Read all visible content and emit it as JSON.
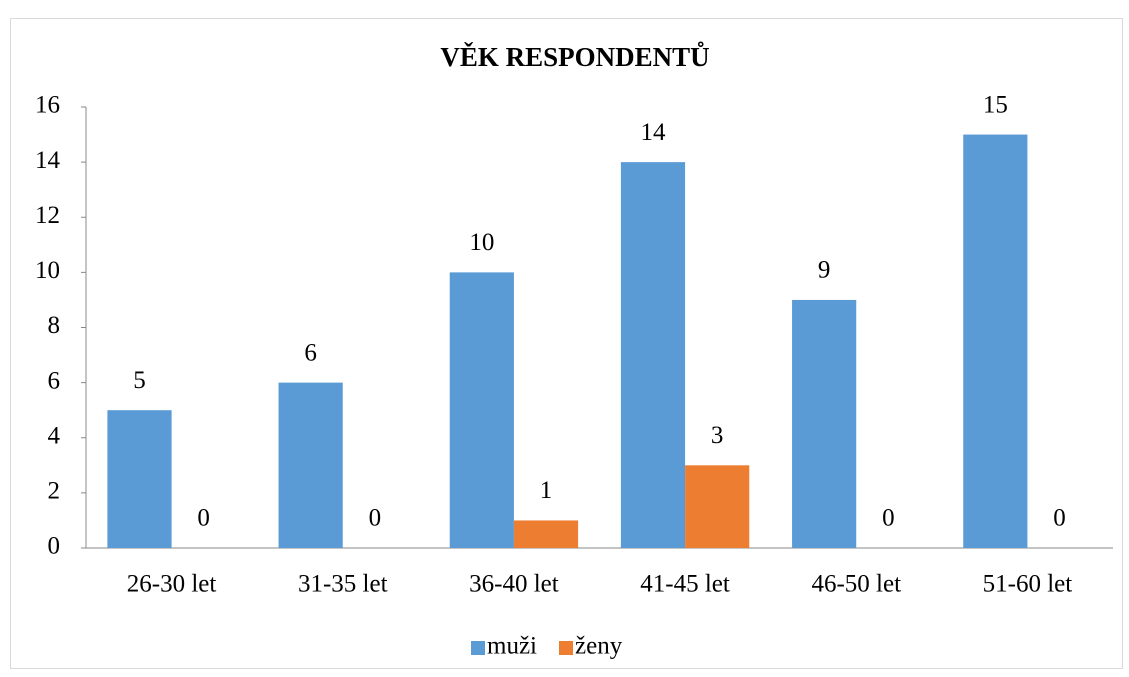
{
  "chart_data": {
    "type": "bar",
    "title": "VĚK RESPONDENTŮ",
    "categories": [
      "26-30 let",
      "31-35 let",
      "36-40 let",
      "41-45 let",
      "46-50 let",
      "51-60 let"
    ],
    "series": [
      {
        "name": "muži",
        "color": "#5b9bd5",
        "values": [
          5,
          6,
          10,
          14,
          9,
          15
        ]
      },
      {
        "name": "ženy",
        "color": "#ed7d31",
        "values": [
          0,
          0,
          1,
          3,
          0,
          0
        ]
      }
    ],
    "ylim": [
      0,
      16
    ],
    "yticks": [
      0,
      2,
      4,
      6,
      8,
      10,
      12,
      14,
      16
    ],
    "grid": false,
    "legend": "bottom"
  }
}
